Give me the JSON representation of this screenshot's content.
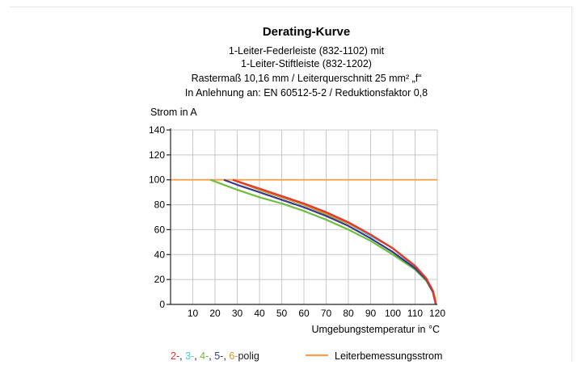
{
  "chart_data": {
    "type": "line",
    "title": "Derating-Kurve",
    "subtitle_lines": [
      "1-Leiter-Federleiste (832-1102) mit",
      "1-Leiter-Stiftleiste (832-1202)",
      "Rastermaß 10,16 mm / Leiterquerschnitt 25 mm² „f“",
      "In Anlehnung an: EN 60512-5-2 / Reduktionsfaktor 0,8"
    ],
    "ylabel": "Strom in A",
    "xlabel": "Umgebungstemperatur in °C",
    "xlim": [
      0,
      120
    ],
    "ylim": [
      0,
      140
    ],
    "xticks": [
      10,
      20,
      30,
      40,
      50,
      60,
      70,
      80,
      90,
      100,
      110,
      120
    ],
    "yticks": [
      0,
      20,
      40,
      60,
      80,
      100,
      120,
      140
    ],
    "grid": true,
    "legend_position": "bottom",
    "legend": {
      "poles": [
        {
          "text": "2-",
          "color": "#e8342c"
        },
        {
          "text": "3-",
          "color": "#57c5c9"
        },
        {
          "text": "4-",
          "color": "#6cbf3c"
        },
        {
          "text": "5-",
          "color": "#3a3a8c"
        },
        {
          "text": "6-",
          "color": "#c79a2a"
        }
      ],
      "separator": ", ",
      "suffix": "polig",
      "line_label": "Leiterbemessungsstrom",
      "line_color": "#f5a04c"
    },
    "series": [
      {
        "color": "#f5a04c",
        "x": [
          0,
          120
        ],
        "y": [
          100,
          100
        ]
      },
      {
        "color": "#57c5c9",
        "x": [
          28,
          40,
          60,
          80,
          90,
          100,
          110,
          115,
          118,
          119,
          119.3
        ],
        "y": [
          100,
          92,
          80,
          65,
          55,
          45,
          30,
          20,
          10,
          5,
          0
        ]
      },
      {
        "color": "#c79a2a",
        "x": [
          28,
          40,
          60,
          80,
          90,
          100,
          110,
          115,
          118,
          119,
          119.3
        ],
        "y": [
          100,
          92,
          80,
          65,
          56,
          45,
          31,
          21,
          11,
          5,
          0
        ]
      },
      {
        "color": "#6cbf3c",
        "x": [
          18,
          30,
          40,
          50,
          60,
          70,
          80,
          90,
          100,
          110,
          115,
          118,
          119.3
        ],
        "y": [
          100,
          92,
          86,
          81,
          75,
          68,
          60,
          51,
          40,
          28,
          19,
          10,
          0
        ]
      },
      {
        "color": "#3a3a8c",
        "x": [
          24,
          30,
          40,
          50,
          60,
          70,
          80,
          90,
          100,
          110,
          115,
          118,
          119.3
        ],
        "y": [
          100,
          96,
          90,
          84,
          78,
          71,
          63,
          53,
          42,
          29,
          20,
          10,
          0
        ]
      },
      {
        "color": "#e8342c",
        "x": [
          28,
          40,
          50,
          60,
          70,
          80,
          90,
          100,
          110,
          115,
          118,
          119.3
        ],
        "y": [
          100,
          93,
          87,
          81,
          74,
          66,
          56,
          45,
          31,
          21,
          11,
          0
        ]
      }
    ]
  }
}
